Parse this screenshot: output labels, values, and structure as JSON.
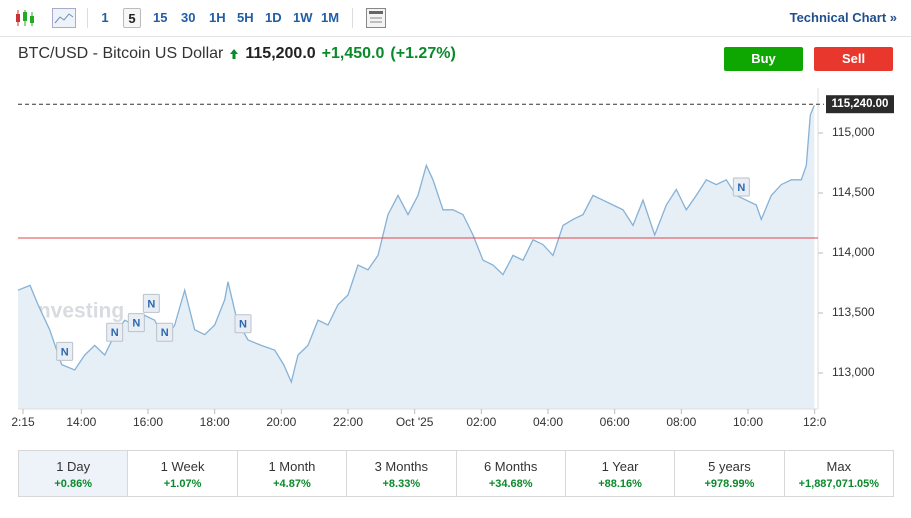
{
  "toolbar": {
    "intervals": [
      "1",
      "5",
      "15",
      "30",
      "1H",
      "5H",
      "1D",
      "1W",
      "1M"
    ],
    "active_interval": "5",
    "link": "Technical Chart »"
  },
  "header": {
    "title": "BTC/USD - Bitcoin US Dollar",
    "price": "115,200.0",
    "change": "+1,450.0",
    "change_percent": "(+1.27%)",
    "buy": "Buy",
    "sell": "Sell"
  },
  "chart_data": {
    "type": "line",
    "color": "#86b2d6",
    "area_color": "#e6eef6",
    "watermark": "Investing",
    "x": [
      12.1,
      12.46,
      12.7,
      13.05,
      13.41,
      13.8,
      14.1,
      14.4,
      14.7,
      15.0,
      15.3,
      15.6,
      15.9,
      16.2,
      16.5,
      16.8,
      17.1,
      17.4,
      17.7,
      18.0,
      18.3,
      18.4,
      18.67,
      19.0,
      19.4,
      19.8,
      20.07,
      20.3,
      20.5,
      20.8,
      21.1,
      21.4,
      21.7,
      22.0,
      22.3,
      22.6,
      22.9,
      23.2,
      23.5,
      23.8,
      24.1,
      24.35,
      24.55,
      24.85,
      25.15,
      25.45,
      25.75,
      26.05,
      26.35,
      26.65,
      26.95,
      27.25,
      27.55,
      27.85,
      28.15,
      28.45,
      28.75,
      29.05,
      29.35,
      29.65,
      29.95,
      30.25,
      30.55,
      30.85,
      31.2,
      31.55,
      31.85,
      32.15,
      32.45,
      32.75,
      33.05,
      33.35,
      33.65,
      33.95,
      34.25,
      34.4,
      34.7,
      35.0,
      35.3,
      35.6,
      35.75,
      35.87,
      35.99
    ],
    "values": [
      113690,
      113730,
      113570,
      113360,
      113070,
      113025,
      113150,
      113230,
      113150,
      113320,
      113440,
      113400,
      113480,
      113440,
      113275,
      113400,
      113690,
      113360,
      113320,
      113400,
      113610,
      113760,
      113440,
      113275,
      113230,
      113190,
      113070,
      112925,
      113150,
      113230,
      113440,
      113400,
      113570,
      113650,
      113900,
      113860,
      113980,
      114320,
      114480,
      114320,
      114480,
      114730,
      114610,
      114360,
      114360,
      114320,
      114150,
      113940,
      113900,
      113820,
      113980,
      113940,
      114110,
      114070,
      113980,
      114230,
      114280,
      114320,
      114480,
      114440,
      114400,
      114360,
      114230,
      114440,
      114150,
      114400,
      114530,
      114360,
      114480,
      114610,
      114570,
      114610,
      114480,
      114440,
      114400,
      114280,
      114480,
      114570,
      114610,
      114610,
      114730,
      115150,
      115230
    ],
    "xlim": [
      12.1,
      36.1
    ],
    "ylim": [
      112700,
      115300
    ],
    "xticks": [
      {
        "value": 12.25,
        "label": "2:15"
      },
      {
        "value": 14,
        "label": "14:00"
      },
      {
        "value": 16,
        "label": "16:00"
      },
      {
        "value": 18,
        "label": "18:00"
      },
      {
        "value": 20,
        "label": "20:00"
      },
      {
        "value": 22,
        "label": "22:00"
      },
      {
        "value": 24,
        "label": "Oct '25"
      },
      {
        "value": 26,
        "label": "02:00"
      },
      {
        "value": 28,
        "label": "04:00"
      },
      {
        "value": 30,
        "label": "06:00"
      },
      {
        "value": 32,
        "label": "08:00"
      },
      {
        "value": 34,
        "label": "10:00"
      },
      {
        "value": 36,
        "label": "12:0"
      }
    ],
    "yticks": [
      {
        "value": 113000,
        "label": "113,000"
      },
      {
        "value": 113500,
        "label": "113,500"
      },
      {
        "value": 114000,
        "label": "114,000"
      },
      {
        "value": 114500,
        "label": "114,500"
      },
      {
        "value": 115000,
        "label": "115,000"
      }
    ],
    "last_price": {
      "value": 115240,
      "label": "115,240.00"
    },
    "reference_line": {
      "value": 114125,
      "color": "#e0474c"
    },
    "annotations": [
      {
        "text": "N",
        "x": 13.5,
        "y": 113180
      },
      {
        "text": "N",
        "x": 15.0,
        "y": 113340
      },
      {
        "text": "N",
        "x": 15.65,
        "y": 113420
      },
      {
        "text": "N",
        "x": 16.1,
        "y": 113580
      },
      {
        "text": "N",
        "x": 16.5,
        "y": 113340
      },
      {
        "text": "N",
        "x": 18.85,
        "y": 113410
      },
      {
        "text": "N",
        "x": 33.8,
        "y": 114550
      }
    ]
  },
  "periods": {
    "active": "1 Day",
    "items": [
      {
        "label": "1 Day",
        "change": "+0.86%"
      },
      {
        "label": "1 Week",
        "change": "+1.07%"
      },
      {
        "label": "1 Month",
        "change": "+4.87%"
      },
      {
        "label": "3 Months",
        "change": "+8.33%"
      },
      {
        "label": "6 Months",
        "change": "+34.68%"
      },
      {
        "label": "1 Year",
        "change": "+88.16%"
      },
      {
        "label": "5 years",
        "change": "+978.99%"
      },
      {
        "label": "Max",
        "change": "+1,887,071.05%"
      }
    ]
  }
}
